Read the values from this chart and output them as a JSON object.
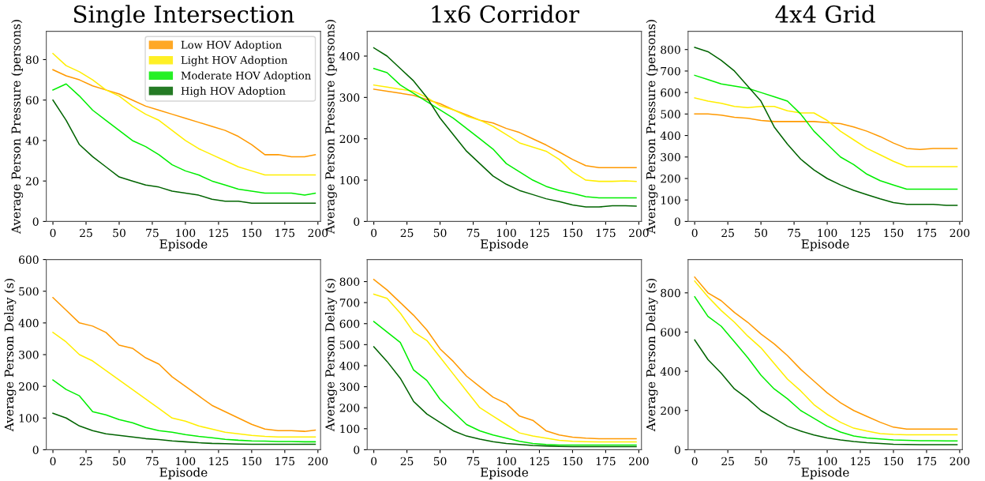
{
  "chart_data": [
    {
      "type": "line",
      "title": "Single Intersection",
      "xlabel": "Episode",
      "ylabel": "Average Person Pressure (persons)",
      "legend": "top right",
      "grid": false,
      "x": [
        0,
        10,
        20,
        30,
        40,
        50,
        60,
        70,
        80,
        90,
        100,
        110,
        120,
        130,
        140,
        150,
        160,
        170,
        180,
        190,
        198
      ],
      "xlim": [
        -5,
        202
      ],
      "xticks": [
        0,
        25,
        50,
        75,
        100,
        125,
        150,
        175,
        200
      ],
      "ylim": [
        0,
        94
      ],
      "yticks": [
        0,
        20,
        40,
        60,
        80
      ],
      "series": [
        {
          "name": "Low HOV Adoption",
          "color": "#ff9900",
          "values": [
            75,
            72,
            70,
            67,
            65,
            63,
            60,
            57,
            55,
            53,
            51,
            49,
            47,
            45,
            42,
            38,
            33,
            33,
            32,
            32,
            33
          ]
        },
        {
          "name": "Light HOV Adoption",
          "color": "#ffee00",
          "values": [
            83,
            77,
            74,
            70,
            65,
            62,
            57,
            53,
            50,
            45,
            40,
            36,
            33,
            30,
            27,
            25,
            23,
            23,
            23,
            23,
            23
          ]
        },
        {
          "name": "Moderate HOV Adoption",
          "color": "#00ee00",
          "values": [
            65,
            68,
            62,
            55,
            50,
            45,
            40,
            37,
            33,
            28,
            25,
            23,
            20,
            18,
            16,
            15,
            14,
            14,
            14,
            13,
            14
          ]
        },
        {
          "name": "High HOV Adoption",
          "color": "#006400",
          "values": [
            60,
            50,
            38,
            32,
            27,
            22,
            20,
            18,
            17,
            15,
            14,
            13,
            11,
            10,
            10,
            9,
            9,
            9,
            9,
            9,
            9
          ]
        }
      ]
    },
    {
      "type": "line",
      "title": "1x6 Corridor",
      "xlabel": "Episode",
      "ylabel": "Average Person Pressure (persons)",
      "grid": false,
      "x": [
        0,
        10,
        20,
        30,
        40,
        50,
        60,
        70,
        80,
        90,
        100,
        110,
        120,
        130,
        140,
        150,
        160,
        170,
        180,
        190,
        198
      ],
      "xlim": [
        -5,
        202
      ],
      "xticks": [
        0,
        25,
        50,
        75,
        100,
        125,
        150,
        175,
        200
      ],
      "ylim": [
        0,
        460
      ],
      "yticks": [
        0,
        100,
        200,
        300,
        400
      ],
      "series": [
        {
          "color": "#ff9900",
          "values": [
            320,
            315,
            310,
            305,
            295,
            285,
            270,
            258,
            245,
            238,
            225,
            215,
            200,
            185,
            168,
            150,
            135,
            130,
            130,
            130,
            130
          ]
        },
        {
          "color": "#ffee00",
          "values": [
            330,
            325,
            320,
            315,
            300,
            280,
            270,
            255,
            245,
            230,
            210,
            190,
            180,
            170,
            150,
            120,
            100,
            97,
            97,
            98,
            97
          ]
        },
        {
          "color": "#00ee00",
          "values": [
            370,
            360,
            330,
            310,
            290,
            270,
            250,
            225,
            200,
            175,
            140,
            120,
            100,
            85,
            75,
            68,
            60,
            57,
            57,
            57,
            57
          ]
        },
        {
          "color": "#006400",
          "values": [
            420,
            400,
            370,
            340,
            300,
            250,
            210,
            170,
            140,
            110,
            90,
            75,
            65,
            55,
            48,
            40,
            35,
            35,
            38,
            38,
            37
          ]
        }
      ]
    },
    {
      "type": "line",
      "title": "4x4 Grid",
      "xlabel": "Episode",
      "ylabel": "Average Person Pressure (persons)",
      "grid": false,
      "x": [
        0,
        10,
        20,
        30,
        40,
        50,
        60,
        70,
        80,
        90,
        100,
        110,
        120,
        130,
        140,
        150,
        160,
        170,
        180,
        190,
        198
      ],
      "xlim": [
        -5,
        202
      ],
      "xticks": [
        0,
        25,
        50,
        75,
        100,
        125,
        150,
        175,
        200
      ],
      "ylim": [
        0,
        885
      ],
      "yticks": [
        0,
        100,
        200,
        300,
        400,
        500,
        600,
        700,
        800
      ],
      "series": [
        {
          "color": "#ff9900",
          "values": [
            500,
            500,
            495,
            485,
            480,
            470,
            465,
            465,
            465,
            465,
            460,
            455,
            440,
            420,
            395,
            365,
            340,
            335,
            340,
            340,
            340
          ]
        },
        {
          "color": "#ffee00",
          "values": [
            575,
            560,
            550,
            535,
            530,
            535,
            535,
            515,
            505,
            505,
            470,
            420,
            380,
            340,
            310,
            280,
            255,
            255,
            255,
            255,
            255
          ]
        },
        {
          "color": "#00ee00",
          "values": [
            680,
            660,
            640,
            630,
            620,
            600,
            580,
            560,
            500,
            420,
            360,
            300,
            265,
            220,
            190,
            170,
            150,
            150,
            150,
            150,
            150
          ]
        },
        {
          "color": "#006400",
          "values": [
            810,
            790,
            750,
            700,
            630,
            560,
            440,
            360,
            290,
            240,
            200,
            170,
            145,
            125,
            105,
            88,
            80,
            80,
            80,
            75,
            75
          ]
        }
      ]
    },
    {
      "type": "line",
      "xlabel": "Episode",
      "ylabel": "Average Person Delay (s)",
      "grid": false,
      "x": [
        0,
        10,
        20,
        30,
        40,
        50,
        60,
        70,
        80,
        90,
        100,
        110,
        120,
        130,
        140,
        150,
        160,
        170,
        180,
        190,
        198
      ],
      "xlim": [
        -5,
        202
      ],
      "xticks": [
        0,
        25,
        50,
        75,
        100,
        125,
        150,
        175,
        200
      ],
      "ylim": [
        0,
        600
      ],
      "yticks": [
        0,
        100,
        200,
        300,
        400,
        500,
        600
      ],
      "series": [
        {
          "color": "#ff9900",
          "values": [
            480,
            440,
            400,
            390,
            370,
            330,
            320,
            290,
            270,
            230,
            200,
            170,
            140,
            120,
            100,
            80,
            65,
            60,
            60,
            58,
            62
          ]
        },
        {
          "color": "#ffee00",
          "values": [
            370,
            340,
            300,
            280,
            250,
            220,
            190,
            160,
            130,
            100,
            90,
            75,
            65,
            55,
            50,
            45,
            42,
            40,
            40,
            40,
            40
          ]
        },
        {
          "color": "#00ee00",
          "values": [
            220,
            190,
            170,
            120,
            110,
            95,
            85,
            70,
            60,
            55,
            48,
            42,
            38,
            33,
            30,
            28,
            27,
            26,
            26,
            25,
            25
          ]
        },
        {
          "color": "#006400",
          "values": [
            115,
            100,
            75,
            60,
            50,
            45,
            40,
            35,
            32,
            28,
            25,
            22,
            20,
            19,
            18,
            17,
            17,
            17,
            17,
            17,
            17
          ]
        }
      ]
    },
    {
      "type": "line",
      "xlabel": "Episode",
      "ylabel": "Average Person Delay (s)",
      "grid": false,
      "x": [
        0,
        10,
        20,
        30,
        40,
        50,
        60,
        70,
        80,
        90,
        100,
        110,
        120,
        130,
        140,
        150,
        160,
        170,
        180,
        190,
        198
      ],
      "xlim": [
        -5,
        202
      ],
      "xticks": [
        0,
        25,
        50,
        75,
        100,
        125,
        150,
        175,
        200
      ],
      "ylim": [
        0,
        905
      ],
      "yticks": [
        0,
        100,
        200,
        300,
        400,
        500,
        600,
        700,
        800
      ],
      "series": [
        {
          "color": "#ff9900",
          "values": [
            810,
            760,
            700,
            640,
            570,
            480,
            420,
            350,
            300,
            250,
            220,
            160,
            140,
            90,
            70,
            60,
            55,
            52,
            52,
            52,
            52
          ]
        },
        {
          "color": "#ffee00",
          "values": [
            740,
            720,
            650,
            560,
            520,
            440,
            360,
            280,
            200,
            160,
            120,
            80,
            65,
            55,
            45,
            40,
            38,
            37,
            37,
            37,
            37
          ]
        },
        {
          "color": "#00ee00",
          "values": [
            610,
            560,
            510,
            380,
            330,
            240,
            180,
            120,
            90,
            70,
            55,
            40,
            30,
            25,
            22,
            22,
            22,
            22,
            22,
            22,
            22
          ]
        },
        {
          "color": "#006400",
          "values": [
            490,
            420,
            340,
            230,
            170,
            130,
            90,
            65,
            50,
            38,
            30,
            25,
            20,
            18,
            16,
            15,
            15,
            15,
            15,
            15,
            15
          ]
        }
      ]
    },
    {
      "type": "line",
      "xlabel": "Episode",
      "ylabel": "Average Person Delay (s)",
      "grid": false,
      "x": [
        0,
        10,
        20,
        30,
        40,
        50,
        60,
        70,
        80,
        90,
        100,
        110,
        120,
        130,
        140,
        150,
        160,
        170,
        180,
        190,
        198
      ],
      "xlim": [
        -5,
        202
      ],
      "xticks": [
        0,
        25,
        50,
        75,
        100,
        125,
        150,
        175,
        200
      ],
      "ylim": [
        0,
        970
      ],
      "yticks": [
        0,
        200,
        400,
        600,
        800
      ],
      "series": [
        {
          "color": "#ff9900",
          "values": [
            880,
            800,
            760,
            700,
            650,
            590,
            540,
            480,
            410,
            350,
            290,
            240,
            200,
            170,
            140,
            115,
            105,
            105,
            105,
            105,
            105
          ]
        },
        {
          "color": "#ffee00",
          "values": [
            860,
            780,
            710,
            650,
            580,
            520,
            440,
            360,
            300,
            230,
            180,
            140,
            110,
            95,
            82,
            78,
            76,
            76,
            76,
            76,
            76
          ]
        },
        {
          "color": "#00ee00",
          "values": [
            780,
            680,
            630,
            550,
            470,
            380,
            310,
            260,
            200,
            160,
            120,
            90,
            70,
            60,
            55,
            50,
            48,
            46,
            46,
            45,
            45
          ]
        },
        {
          "color": "#006400",
          "values": [
            560,
            460,
            390,
            310,
            260,
            200,
            160,
            120,
            95,
            75,
            60,
            50,
            42,
            36,
            32,
            28,
            27,
            26,
            26,
            26,
            26
          ]
        }
      ]
    }
  ]
}
